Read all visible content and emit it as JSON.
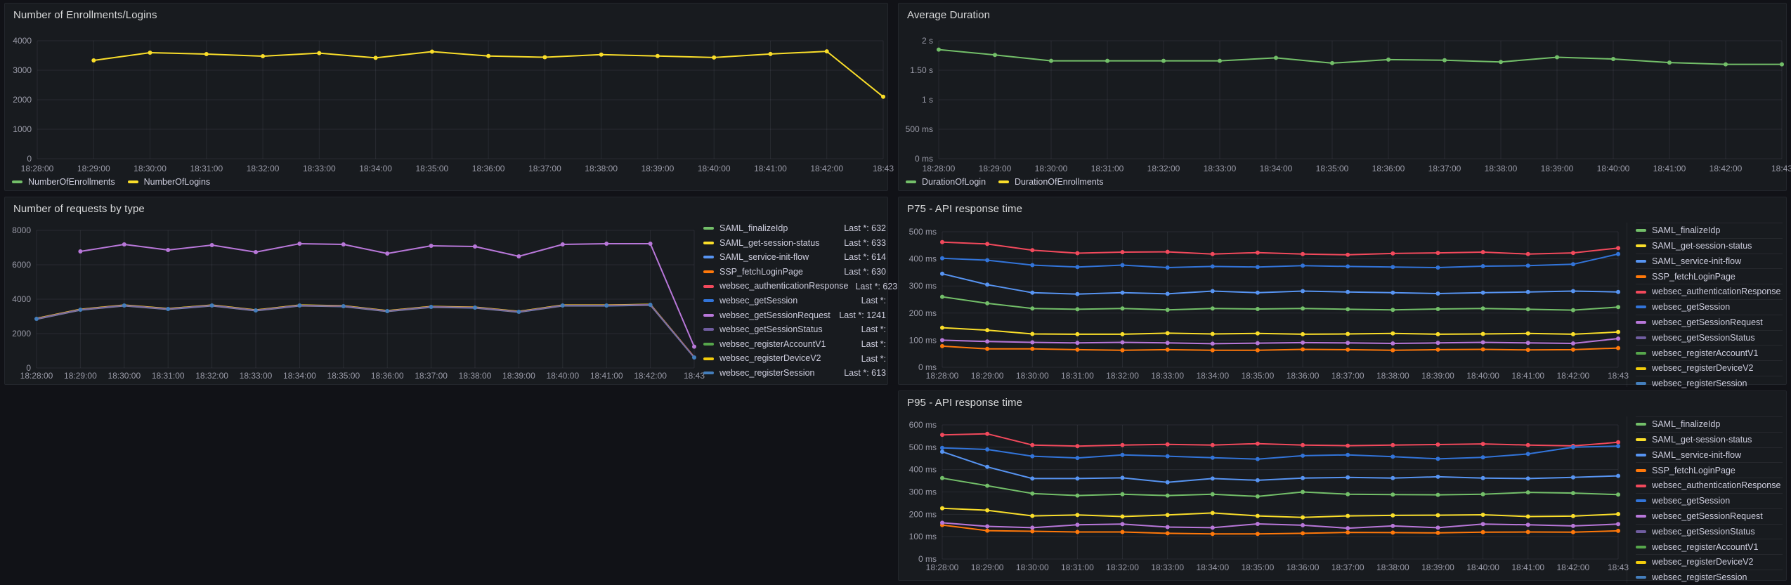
{
  "dashboard_title": "",
  "time": {
    "ticks": [
      "18:28:00",
      "18:29:00",
      "18:30:00",
      "18:31:00",
      "18:32:00",
      "18:33:00",
      "18:34:00",
      "18:35:00",
      "18:36:00",
      "18:37:00",
      "18:38:00",
      "18:39:00",
      "18:40:00",
      "18:41:00",
      "18:42:00",
      "18:43"
    ]
  },
  "chart_data": [
    {
      "id": "enrollments-logins",
      "type": "line",
      "title": "Number of Enrollments/Logins",
      "y_ticks": [
        "4000",
        "3000",
        "2000",
        "1000",
        "0"
      ],
      "ylim": [
        0,
        4000
      ],
      "grid": true,
      "legend_position": "bottom",
      "series": [
        {
          "name": "NumberOfEnrollments",
          "color": "#73BF69",
          "values": []
        },
        {
          "name": "NumberOfLogins",
          "color": "#FADE2A",
          "values": [
            null,
            3333,
            3595,
            3547,
            3476,
            3580,
            3420,
            3630,
            3480,
            3440,
            3530,
            3480,
            3430,
            3550,
            3640,
            2100
          ]
        }
      ]
    },
    {
      "id": "average-duration",
      "type": "line",
      "title": "Average Duration",
      "y_ticks": [
        "2 s",
        "1.50 s",
        "1 s",
        "500 ms",
        "0 ms"
      ],
      "ylim": [
        0,
        2
      ],
      "grid": true,
      "legend_position": "bottom",
      "series": [
        {
          "name": "DurationOfLogin",
          "color": "#73BF69",
          "values": [
            1.85,
            1.76,
            1.66,
            1.66,
            1.66,
            1.66,
            1.71,
            1.62,
            1.68,
            1.67,
            1.64,
            1.72,
            1.69,
            1.63,
            1.6,
            1.6
          ]
        },
        {
          "name": "DurationOfEnrollments",
          "color": "#FADE2A",
          "values": []
        }
      ]
    },
    {
      "id": "requests-by-type",
      "type": "line",
      "title": "Number of requests by type",
      "y_ticks": [
        "8000",
        "6000",
        "4000",
        "2000",
        "0"
      ],
      "ylim": [
        0,
        8000
      ],
      "grid": true,
      "legend_position": "right",
      "legend_stat_label": "Last *:",
      "series": [
        {
          "name": "SAML_finalizeIdp",
          "color": "#73BF69",
          "last": "632",
          "values": [
            2872,
            3402,
            3648,
            3443,
            3648,
            3362,
            3648,
            3607,
            3321,
            3566,
            3525,
            3280,
            3648,
            3648,
            3688,
            632
          ]
        },
        {
          "name": "SAML_get-session-status",
          "color": "#FADE2A",
          "last": "633",
          "values": [
            2882,
            3412,
            3658,
            3453,
            3658,
            3372,
            3658,
            3617,
            3331,
            3576,
            3535,
            3290,
            3658,
            3658,
            3698,
            633
          ]
        },
        {
          "name": "SAML_service-init-flow",
          "color": "#5794F2",
          "last": "614",
          "values": [
            2837,
            3367,
            3613,
            3408,
            3613,
            3327,
            3613,
            3572,
            3286,
            3531,
            3490,
            3245,
            3613,
            3613,
            3653,
            614
          ]
        },
        {
          "name": "SSP_fetchLoginPage",
          "color": "#FF780A",
          "last": "630",
          "values": [
            2852,
            3382,
            3628,
            3423,
            3628,
            3342,
            3628,
            3587,
            3301,
            3546,
            3505,
            3260,
            3628,
            3628,
            3668,
            630
          ]
        },
        {
          "name": "websec_authenticationResponse",
          "color": "#F2495C",
          "last": "623",
          "values": [
            2862,
            3392,
            3638,
            3433,
            3638,
            3352,
            3638,
            3597,
            3311,
            3556,
            3515,
            3270,
            3638,
            3638,
            3678,
            623
          ]
        },
        {
          "name": "websec_getSession",
          "color": "#3274D9",
          "last": "",
          "values": []
        },
        {
          "name": "websec_getSessionRequest",
          "color": "#B877D9",
          "last": "1241",
          "values": [
            null,
            6776,
            7184,
            6857,
            7143,
            6735,
            7225,
            7184,
            6653,
            7102,
            7061,
            6490,
            7184,
            7225,
            7225,
            1241
          ]
        },
        {
          "name": "websec_getSessionStatus",
          "color": "#705DA0",
          "last": "",
          "values": []
        },
        {
          "name": "websec_registerAccountV1",
          "color": "#56A64B",
          "last": "",
          "values": []
        },
        {
          "name": "websec_registerDeviceV2",
          "color": "#F2CC0C",
          "last": "",
          "values": []
        },
        {
          "name": "websec_registerSession",
          "color": "#447EBC",
          "last": "613",
          "values": [
            2857,
            3387,
            3633,
            3428,
            3633,
            3347,
            3633,
            3592,
            3306,
            3551,
            3510,
            3265,
            3633,
            3633,
            3673,
            613
          ]
        }
      ]
    },
    {
      "id": "p75-api-response-time",
      "type": "line",
      "title": "P75 - API response time",
      "y_ticks": [
        "500 ms",
        "400 ms",
        "300 ms",
        "200 ms",
        "100 ms",
        "0 ms"
      ],
      "ylim": [
        0,
        500
      ],
      "grid": true,
      "legend_position": "right",
      "series": [
        {
          "name": "SAML_finalizeIdp",
          "color": "#73BF69",
          "values": [
            260,
            236,
            217,
            214,
            217,
            212,
            217,
            215,
            217,
            214,
            212,
            215,
            217,
            214,
            211,
            222
          ]
        },
        {
          "name": "SAML_get-session-status",
          "color": "#FADE2A",
          "values": [
            146,
            137,
            123,
            122,
            122,
            126,
            123,
            125,
            122,
            123,
            125,
            122,
            123,
            125,
            122,
            130
          ]
        },
        {
          "name": "SAML_service-init-flow",
          "color": "#5794F2",
          "values": [
            345,
            305,
            275,
            270,
            275,
            271,
            281,
            275,
            281,
            278,
            275,
            272,
            275,
            278,
            281,
            278
          ]
        },
        {
          "name": "SSP_fetchLoginPage",
          "color": "#FF780A",
          "values": [
            78,
            68,
            68,
            65,
            63,
            65,
            63,
            63,
            66,
            65,
            63,
            65,
            66,
            64,
            65,
            71
          ]
        },
        {
          "name": "websec_authenticationResponse",
          "color": "#F2495C",
          "values": [
            462,
            455,
            432,
            421,
            425,
            426,
            418,
            423,
            418,
            415,
            420,
            422,
            425,
            418,
            422,
            440
          ]
        },
        {
          "name": "websec_getSession",
          "color": "#3274D9",
          "values": [
            402,
            395,
            377,
            370,
            377,
            368,
            372,
            370,
            375,
            372,
            370,
            368,
            373,
            375,
            380,
            418
          ]
        },
        {
          "name": "websec_getSessionRequest",
          "color": "#B877D9",
          "values": [
            100,
            95,
            92,
            90,
            92,
            90,
            87,
            89,
            91,
            90,
            88,
            90,
            92,
            90,
            88,
            106
          ]
        },
        {
          "name": "websec_getSessionStatus",
          "color": "#705DA0",
          "values": []
        },
        {
          "name": "websec_registerAccountV1",
          "color": "#56A64B",
          "values": []
        },
        {
          "name": "websec_registerDeviceV2",
          "color": "#F2CC0C",
          "values": []
        },
        {
          "name": "websec_registerSession",
          "color": "#447EBC",
          "values": []
        }
      ]
    },
    {
      "id": "p95-api-response-time",
      "type": "line",
      "title": "P95 - API response time",
      "y_ticks": [
        "600 ms",
        "500 ms",
        "400 ms",
        "300 ms",
        "200 ms",
        "100 ms",
        "0 ms"
      ],
      "ylim": [
        0,
        600
      ],
      "grid": true,
      "legend_position": "right",
      "series": [
        {
          "name": "SAML_finalizeIdp",
          "color": "#73BF69",
          "values": [
            362,
            328,
            293,
            284,
            290,
            284,
            290,
            280,
            300,
            290,
            288,
            287,
            290,
            298,
            295,
            288
          ]
        },
        {
          "name": "SAML_get-session-status",
          "color": "#FADE2A",
          "values": [
            227,
            218,
            193,
            197,
            190,
            197,
            206,
            193,
            186,
            193,
            195,
            196,
            198,
            190,
            192,
            201
          ]
        },
        {
          "name": "SAML_service-init-flow",
          "color": "#5794F2",
          "values": [
            480,
            412,
            360,
            360,
            363,
            343,
            360,
            352,
            362,
            365,
            362,
            368,
            362,
            360,
            365,
            372
          ]
        },
        {
          "name": "SSP_fetchLoginPage",
          "color": "#FF780A",
          "values": [
            152,
            127,
            124,
            121,
            121,
            115,
            112,
            112,
            115,
            119,
            118,
            117,
            120,
            121,
            120,
            126
          ]
        },
        {
          "name": "websec_authenticationResponse",
          "color": "#F2495C",
          "values": [
            555,
            560,
            510,
            505,
            510,
            513,
            510,
            516,
            510,
            507,
            510,
            512,
            515,
            510,
            506,
            522
          ]
        },
        {
          "name": "websec_getSession",
          "color": "#3274D9",
          "values": [
            497,
            490,
            460,
            452,
            466,
            460,
            453,
            447,
            462,
            466,
            458,
            448,
            455,
            470,
            500,
            505
          ]
        },
        {
          "name": "websec_getSessionRequest",
          "color": "#B877D9",
          "values": [
            162,
            146,
            140,
            153,
            156,
            143,
            140,
            157,
            151,
            138,
            148,
            140,
            156,
            153,
            148,
            156
          ]
        },
        {
          "name": "websec_getSessionStatus",
          "color": "#705DA0",
          "values": []
        },
        {
          "name": "websec_registerAccountV1",
          "color": "#56A64B",
          "values": []
        },
        {
          "name": "websec_registerDeviceV2",
          "color": "#F2CC0C",
          "values": []
        },
        {
          "name": "websec_registerSession",
          "color": "#447EBC",
          "values": []
        }
      ]
    }
  ],
  "theme": {
    "background": "#111217",
    "panel_background": "#181b1f",
    "grid_color": "rgba(204,204,220,0.09)",
    "axis_text_color": "rgba(204,204,220,0.72)",
    "title_color": "#d8d9da",
    "legend_text_color": "#ccccdc"
  }
}
